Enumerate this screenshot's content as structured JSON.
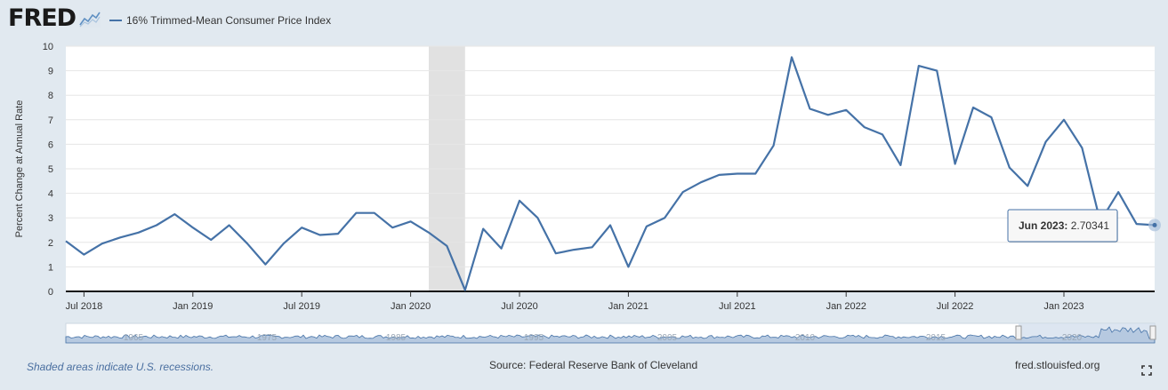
{
  "header": {
    "logo_text": "FRED",
    "series_label": "16% Trimmed-Mean Consumer Price Index",
    "series_color": "#4572a7",
    "logo_icon": "fred-sparkline-icon"
  },
  "chart_data": {
    "type": "line",
    "title": "",
    "xlabel": "",
    "ylabel": "Percent Change at Annual Rate",
    "ylim": [
      0,
      10
    ],
    "yticks": [
      "0",
      "1",
      "2",
      "3",
      "4",
      "5",
      "6",
      "7",
      "8",
      "9",
      "10"
    ],
    "xticks": [
      "Jul 2018",
      "Jan 2019",
      "Jul 2019",
      "Jan 2020",
      "Jul 2020",
      "Jan 2021",
      "Jul 2021",
      "Jan 2022",
      "Jul 2022",
      "Jan 2023"
    ],
    "grid": true,
    "series": [
      {
        "name": "16% Trimmed-Mean Consumer Price Index",
        "color": "#4572a7",
        "x": [
          "2018-06",
          "2018-07",
          "2018-08",
          "2018-09",
          "2018-10",
          "2018-11",
          "2018-12",
          "2019-01",
          "2019-02",
          "2019-03",
          "2019-04",
          "2019-05",
          "2019-06",
          "2019-07",
          "2019-08",
          "2019-09",
          "2019-10",
          "2019-11",
          "2019-12",
          "2020-01",
          "2020-02",
          "2020-03",
          "2020-04",
          "2020-05",
          "2020-06",
          "2020-07",
          "2020-08",
          "2020-09",
          "2020-10",
          "2020-11",
          "2020-12",
          "2021-01",
          "2021-02",
          "2021-03",
          "2021-04",
          "2021-05",
          "2021-06",
          "2021-07",
          "2021-08",
          "2021-09",
          "2021-10",
          "2021-11",
          "2021-12",
          "2022-01",
          "2022-02",
          "2022-03",
          "2022-04",
          "2022-05",
          "2022-06",
          "2022-07",
          "2022-08",
          "2022-09",
          "2022-10",
          "2022-11",
          "2022-12",
          "2023-01",
          "2023-02",
          "2023-03",
          "2023-04",
          "2023-05",
          "2023-06"
        ],
        "values": [
          2.05,
          1.5,
          1.95,
          2.2,
          2.4,
          2.7,
          3.15,
          2.6,
          2.1,
          2.7,
          1.95,
          1.1,
          1.95,
          2.6,
          2.3,
          2.35,
          3.2,
          3.2,
          2.6,
          2.85,
          2.4,
          1.85,
          0.05,
          2.55,
          1.75,
          3.7,
          3.0,
          1.55,
          1.7,
          1.8,
          2.7,
          1.0,
          2.65,
          3.0,
          4.05,
          4.45,
          4.75,
          4.8,
          4.8,
          5.95,
          9.55,
          7.45,
          7.2,
          7.4,
          6.7,
          6.4,
          5.15,
          9.2,
          9.0,
          5.2,
          7.5,
          7.1,
          5.05,
          4.3,
          6.1,
          7.0,
          5.85,
          2.85,
          4.05,
          2.75,
          2.70341
        ]
      }
    ],
    "recessions": [
      {
        "start": "2020-02",
        "end": "2020-04"
      }
    ],
    "tooltip": {
      "date_label": "Jun 2023:",
      "value_label": "2.70341"
    },
    "navigator": {
      "labels": [
        "1965",
        "1975",
        "1985",
        "1995",
        "2005",
        "2010",
        "2015",
        "2020"
      ]
    }
  },
  "footer": {
    "note": "Shaded areas indicate U.S. recessions.",
    "source": "Source: Federal Reserve Bank of Cleveland",
    "site": "fred.stlouisfed.org",
    "fullscreen_icon": "fullscreen-icon"
  }
}
